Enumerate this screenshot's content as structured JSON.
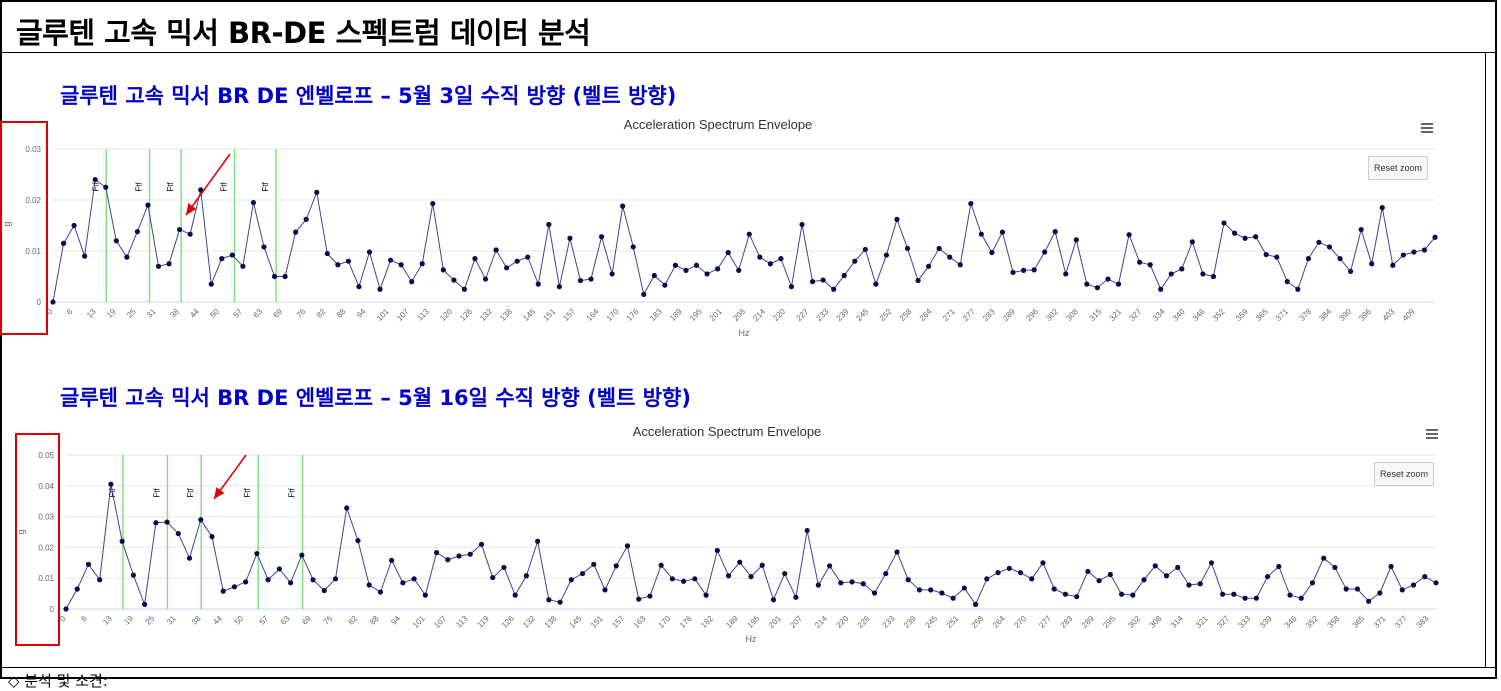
{
  "page": {
    "title": "글루텐 고속 믹서 BR-DE 스펙트럼 데이터 분석",
    "footer": "◇ 분석 및 소견:"
  },
  "colors": {
    "series": "#434390",
    "marker": "#0b0b4a",
    "fault_line": "#7fe57f",
    "arrow": "#e00000",
    "title": "#0000c8"
  },
  "icons": [
    "menu-icon",
    "arrow-icon"
  ],
  "chart_data": [
    {
      "type": "line",
      "section_title": "글루텐 고속 믹서 BR DE 엔벨로프 – 5월 3일 수직 방향 (벨트 방향)",
      "title": "Acceleration Spectrum Envelope",
      "xlabel": "Hz",
      "ylabel": "g",
      "ylim": [
        0,
        0.03
      ],
      "yticks": [
        "0",
        "0.01",
        "0.02",
        "0.03"
      ],
      "xticks": [
        "0",
        "6",
        "13",
        "19",
        "25",
        "31",
        "38",
        "44",
        "50",
        "57",
        "63",
        "69",
        "76",
        "82",
        "88",
        "94",
        "101",
        "107",
        "113",
        "120",
        "126",
        "132",
        "138",
        "145",
        "151",
        "157",
        "164",
        "170",
        "176",
        "183",
        "189",
        "195",
        "201",
        "208",
        "214",
        "220",
        "227",
        "233",
        "239",
        "245",
        "252",
        "258",
        "264",
        "271",
        "277",
        "283",
        "289",
        "296",
        "302",
        "308",
        "315",
        "321",
        "327",
        "334",
        "340",
        "346",
        "352",
        "359",
        "365",
        "371",
        "378",
        "384",
        "390",
        "396",
        "403",
        "409"
      ],
      "x_max": 415,
      "markers": [
        {
          "label": "Ftf",
          "x": 16
        },
        {
          "label": "Ftf",
          "x": 29
        },
        {
          "label": "Ftf",
          "x": 38.5
        },
        {
          "label": "Ftf",
          "x": 54.5
        },
        {
          "label": "Ftf",
          "x": 67
        }
      ],
      "arrow_label": "",
      "reset_label": "Reset zoom",
      "values": [
        0.0,
        0.0115,
        0.015,
        0.009,
        0.024,
        0.0225,
        0.012,
        0.0088,
        0.0138,
        0.019,
        0.007,
        0.0075,
        0.0142,
        0.0133,
        0.022,
        0.0035,
        0.0085,
        0.0092,
        0.007,
        0.0195,
        0.0108,
        0.005,
        0.005,
        0.0137,
        0.0162,
        0.0215,
        0.0095,
        0.0073,
        0.008,
        0.003,
        0.0098,
        0.0025,
        0.0082,
        0.0073,
        0.004,
        0.0075,
        0.0193,
        0.0063,
        0.0043,
        0.0025,
        0.0085,
        0.0045,
        0.0102,
        0.0067,
        0.008,
        0.0088,
        0.0035,
        0.0152,
        0.003,
        0.0125,
        0.0042,
        0.0045,
        0.0128,
        0.0055,
        0.0188,
        0.0108,
        0.0015,
        0.0052,
        0.0033,
        0.0072,
        0.0062,
        0.0072,
        0.0055,
        0.0065,
        0.0097,
        0.0062,
        0.0133,
        0.0088,
        0.0075,
        0.0085,
        0.003,
        0.0152,
        0.004,
        0.0043,
        0.0025,
        0.0052,
        0.008,
        0.0103,
        0.0035,
        0.0092,
        0.0162,
        0.0105,
        0.0042,
        0.007,
        0.0105,
        0.0088,
        0.0073,
        0.0193,
        0.0133,
        0.0097,
        0.0137,
        0.0058,
        0.0062,
        0.0063,
        0.0098,
        0.0138,
        0.0055,
        0.0122,
        0.0035,
        0.0028,
        0.0045,
        0.0035,
        0.0132,
        0.0078,
        0.0073,
        0.0025,
        0.0055,
        0.0065,
        0.0118,
        0.0055,
        0.005,
        0.0155,
        0.0135,
        0.0125,
        0.0128,
        0.0093,
        0.0088,
        0.004,
        0.0025,
        0.0085,
        0.0117,
        0.0108,
        0.0085,
        0.006,
        0.0142,
        0.0075,
        0.0185,
        0.0072,
        0.0092,
        0.0098,
        0.0102,
        0.0127
      ]
    },
    {
      "type": "line",
      "section_title": "글루텐 고속 믹서 BR DE 엔벨로프 – 5월 16일 수직 방향 (벨트 방향)",
      "title": "Acceleration Spectrum Envelope",
      "xlabel": "Hz",
      "ylabel": "g",
      "ylim": [
        0,
        0.05
      ],
      "yticks": [
        "0",
        "0.01",
        "0.02",
        "0.03",
        "0.04",
        "0.05"
      ],
      "xticks": [
        "0",
        "6",
        "13",
        "19",
        "25",
        "31",
        "38",
        "44",
        "50",
        "57",
        "63",
        "69",
        "75",
        "82",
        "88",
        "94",
        "101",
        "107",
        "113",
        "119",
        "126",
        "132",
        "138",
        "145",
        "151",
        "157",
        "163",
        "170",
        "176",
        "182",
        "189",
        "195",
        "201",
        "207",
        "214",
        "220",
        "226",
        "233",
        "239",
        "245",
        "251",
        "258",
        "264",
        "270",
        "277",
        "283",
        "289",
        "295",
        "302",
        "308",
        "314",
        "321",
        "327",
        "333",
        "339",
        "346",
        "352",
        "358",
        "365",
        "371",
        "377",
        "383"
      ],
      "x_max": 385,
      "markers": [
        {
          "label": "Ftf",
          "x": 16
        },
        {
          "label": "Ftf",
          "x": 28.5
        },
        {
          "label": "Ftf",
          "x": 38
        },
        {
          "label": "Ftf",
          "x": 54
        },
        {
          "label": "Ftf",
          "x": 66.5
        }
      ],
      "reset_label": "Reset zoom",
      "values": [
        0.0,
        0.0065,
        0.0145,
        0.0095,
        0.0405,
        0.022,
        0.011,
        0.0015,
        0.028,
        0.0282,
        0.0245,
        0.0165,
        0.029,
        0.0235,
        0.0058,
        0.0072,
        0.0088,
        0.018,
        0.0095,
        0.013,
        0.0085,
        0.0175,
        0.0095,
        0.006,
        0.0098,
        0.0328,
        0.0222,
        0.0078,
        0.0055,
        0.0158,
        0.0085,
        0.0098,
        0.0045,
        0.0183,
        0.016,
        0.0172,
        0.0178,
        0.021,
        0.0102,
        0.0135,
        0.0045,
        0.0108,
        0.022,
        0.003,
        0.0022,
        0.0095,
        0.0115,
        0.0145,
        0.0062,
        0.014,
        0.0205,
        0.0032,
        0.0042,
        0.0142,
        0.0098,
        0.009,
        0.0098,
        0.0045,
        0.019,
        0.0108,
        0.0152,
        0.0105,
        0.0142,
        0.003,
        0.0115,
        0.0038,
        0.0255,
        0.0078,
        0.014,
        0.0085,
        0.0088,
        0.0082,
        0.0052,
        0.0115,
        0.0185,
        0.0095,
        0.0062,
        0.0062,
        0.0052,
        0.0035,
        0.0068,
        0.0015,
        0.0098,
        0.0118,
        0.0132,
        0.0118,
        0.0098,
        0.015,
        0.0065,
        0.0048,
        0.004,
        0.0122,
        0.0092,
        0.0112,
        0.0048,
        0.0045,
        0.0095,
        0.014,
        0.0108,
        0.0135,
        0.0078,
        0.0082,
        0.015,
        0.0048,
        0.0048,
        0.0035,
        0.0035,
        0.0105,
        0.0138,
        0.0045,
        0.0035,
        0.0085,
        0.0165,
        0.0135,
        0.0065,
        0.0065,
        0.0025,
        0.0052,
        0.0138,
        0.0062,
        0.0078,
        0.0105,
        0.0085
      ]
    }
  ]
}
